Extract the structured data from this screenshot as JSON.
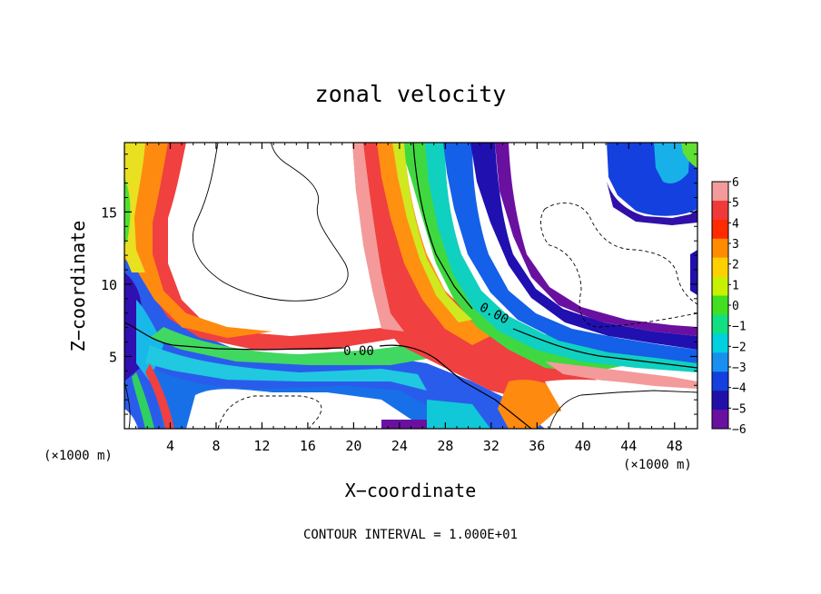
{
  "chart_data": {
    "type": "heatmap",
    "title": "zonal velocity",
    "xlabel": "X−coordinate",
    "ylabel": "Z−coordinate",
    "x_unit_label_left": "(×1000 m)",
    "x_unit_label_right": "(×1000 m)",
    "footer": "CONTOUR INTERVAL = 1.000E+01",
    "xlim": [
      0,
      50
    ],
    "ylim": [
      0,
      19.8
    ],
    "x_ticks": [
      4,
      8,
      12,
      16,
      20,
      24,
      28,
      32,
      36,
      40,
      44,
      48
    ],
    "x_tick_labels": [
      "4",
      "8",
      "12",
      "16",
      "20",
      "24",
      "28",
      "32",
      "36",
      "40",
      "44",
      "48"
    ],
    "y_ticks": [
      5,
      10,
      15
    ],
    "y_tick_labels": [
      "5",
      "10",
      "15"
    ],
    "colorbar": {
      "values": [
        6,
        5,
        4,
        3,
        2,
        1,
        0,
        -1,
        -2,
        -3,
        -4,
        -5,
        -6
      ],
      "labels": [
        "6",
        "5",
        "4",
        "3",
        "2",
        "1",
        "0",
        "−1",
        "−2",
        "−3",
        "−4",
        "−5",
        "−6"
      ],
      "colors": [
        "#f49a9a",
        "#f03a3a",
        "#ff2a00",
        "#ff8c00",
        "#ffd000",
        "#c8f000",
        "#40e020",
        "#10e080",
        "#00d0e0",
        "#1890f0",
        "#1440e0",
        "#2010a8",
        "#6a10a0"
      ]
    },
    "contour_labels": [
      {
        "text": "0.00",
        "x": 19.8,
        "z": 5.3
      },
      {
        "text": "0.00",
        "x": 31.2,
        "z": 8.0
      }
    ],
    "features": [
      {
        "x": 27,
        "z": 8,
        "value": 3
      },
      {
        "x": 31,
        "z": 12,
        "value": 0
      },
      {
        "x": 33,
        "z": 15,
        "value": -4
      },
      {
        "x": 3,
        "z": 13,
        "value": 5
      },
      {
        "x": 2,
        "z": 8,
        "value": -4
      },
      {
        "x": 15,
        "z": 5,
        "value": 0
      },
      {
        "x": 15,
        "z": 3.5,
        "value": -3
      },
      {
        "x": 45,
        "z": 17,
        "value": -4
      },
      {
        "x": 44,
        "z": 4.3,
        "value": -3
      }
    ]
  }
}
